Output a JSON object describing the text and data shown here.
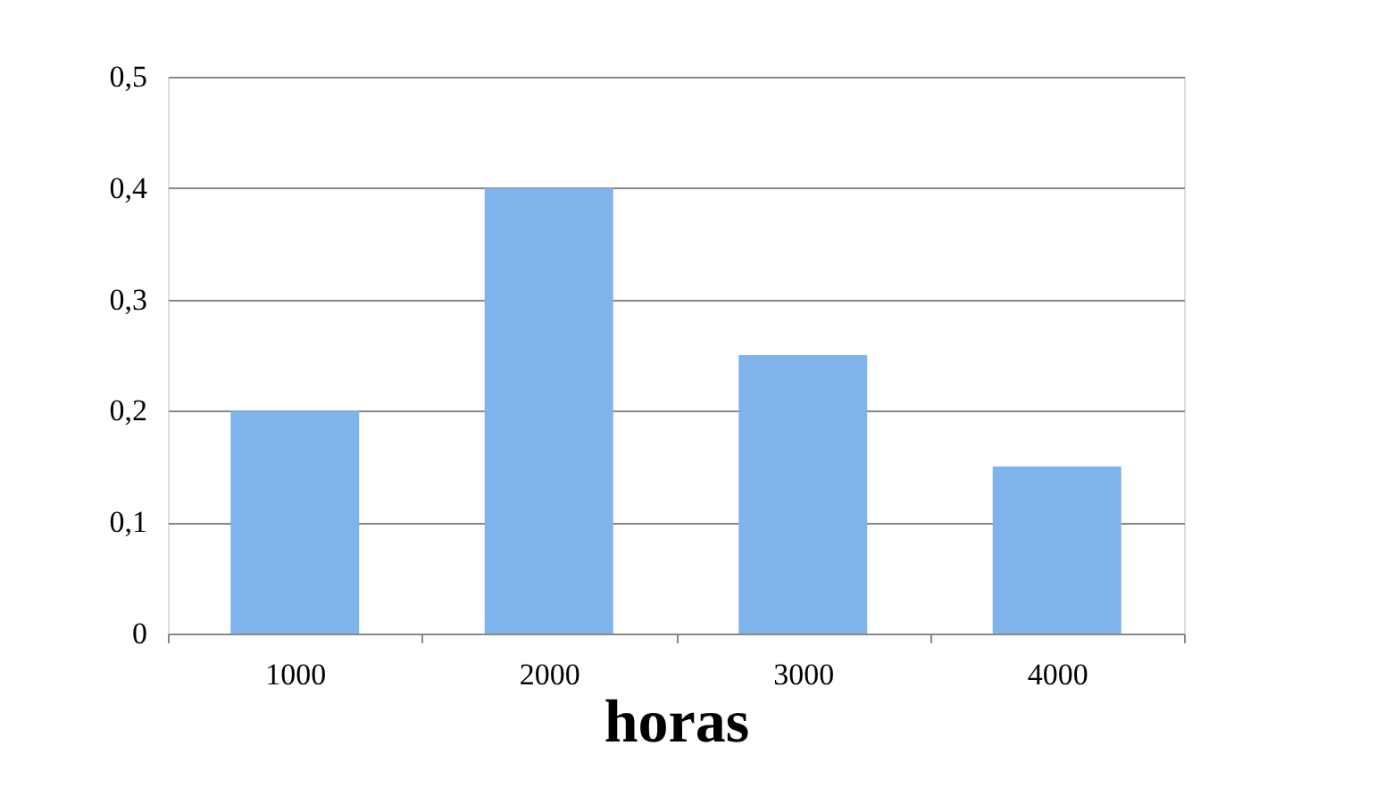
{
  "chart_data": {
    "type": "bar",
    "xlabel": "horas",
    "categories": [
      "1000",
      "2000",
      "3000",
      "4000"
    ],
    "values": [
      0.2,
      0.4,
      0.25,
      0.15
    ],
    "color": "#7fb3ec",
    "ylim": [
      0,
      0.5
    ],
    "yticks": [
      {
        "value": 0,
        "label": "0"
      },
      {
        "value": 0.1,
        "label": "0,1"
      },
      {
        "value": 0.2,
        "label": "0,2"
      },
      {
        "value": 0.3,
        "label": "0,3"
      },
      {
        "value": 0.4,
        "label": "0,4"
      },
      {
        "value": 0.5,
        "label": "0,5"
      }
    ],
    "grid": "y"
  }
}
